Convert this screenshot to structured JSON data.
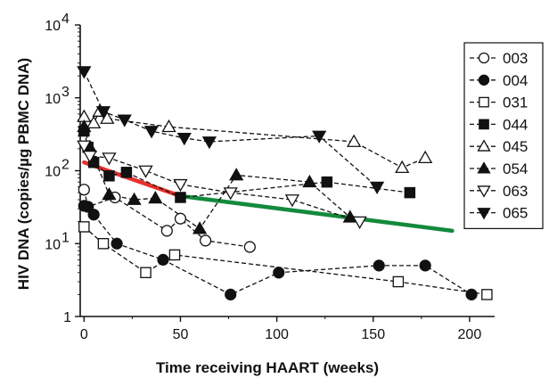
{
  "chart_data": {
    "type": "scatter",
    "xlabel": "Time receiving HAART (weeks)",
    "ylabel": "HIV DNA (copies/µg PBMC DNA)",
    "xlim": [
      -2,
      213
    ],
    "ylim": [
      1,
      10000
    ],
    "y_scale": "log",
    "x_ticks": [
      0,
      50,
      100,
      150,
      200
    ],
    "y_ticks": [
      {
        "value": 1,
        "base": "1",
        "exp": ""
      },
      {
        "value": 10,
        "base": "10",
        "exp": "1"
      },
      {
        "value": 100,
        "base": "10",
        "exp": "2"
      },
      {
        "value": 1000,
        "base": "10",
        "exp": "3"
      },
      {
        "value": 10000,
        "base": "10",
        "exp": "4"
      }
    ],
    "legend_position": "right",
    "series": [
      {
        "name": "003",
        "marker": "circle",
        "filled": false,
        "x": [
          0,
          2,
          16,
          43,
          50,
          63,
          86
        ],
        "y": [
          55,
          32,
          43,
          15,
          22,
          11,
          9
        ]
      },
      {
        "name": "004",
        "marker": "circle",
        "filled": true,
        "x": [
          0,
          2,
          5,
          17,
          41,
          76,
          101,
          153,
          177,
          201
        ],
        "y": [
          33,
          32,
          25,
          10,
          6,
          2,
          4,
          5,
          5,
          2
        ]
      },
      {
        "name": "031",
        "marker": "square",
        "filled": false,
        "x": [
          0,
          10,
          32,
          47,
          163,
          209
        ],
        "y": [
          17,
          10,
          4,
          7,
          3,
          2
        ]
      },
      {
        "name": "044",
        "marker": "square",
        "filled": true,
        "x": [
          0,
          2,
          5,
          13,
          22,
          50,
          126,
          169
        ],
        "y": [
          350,
          210,
          130,
          85,
          95,
          43,
          70,
          50
        ]
      },
      {
        "name": "045",
        "marker": "triangle-up",
        "filled": false,
        "x": [
          0,
          5,
          8,
          12,
          44,
          140,
          165,
          177
        ],
        "y": [
          550,
          450,
          650,
          520,
          400,
          250,
          110,
          150
        ]
      },
      {
        "name": "054",
        "marker": "triangle-up",
        "filled": true,
        "x": [
          0,
          3,
          13,
          26,
          37,
          60,
          79,
          117,
          138
        ],
        "y": [
          400,
          210,
          47,
          40,
          42,
          16,
          87,
          70,
          23
        ]
      },
      {
        "name": "063",
        "marker": "triangle-down",
        "filled": false,
        "x": [
          0,
          3,
          13,
          32,
          50,
          76,
          108,
          143
        ],
        "y": [
          220,
          160,
          150,
          100,
          65,
          50,
          40,
          20
        ]
      },
      {
        "name": "065",
        "marker": "triangle-down",
        "filled": true,
        "x": [
          0,
          10,
          21,
          35,
          52,
          65,
          122,
          152
        ],
        "y": [
          2300,
          650,
          500,
          350,
          280,
          250,
          300,
          60
        ]
      }
    ],
    "trend_lines": [
      {
        "color": "#e8302b",
        "x": [
          0,
          50
        ],
        "y": [
          130,
          45
        ]
      },
      {
        "color": "#138a3c",
        "x": [
          50,
          191
        ],
        "y": [
          45,
          15
        ]
      }
    ]
  }
}
